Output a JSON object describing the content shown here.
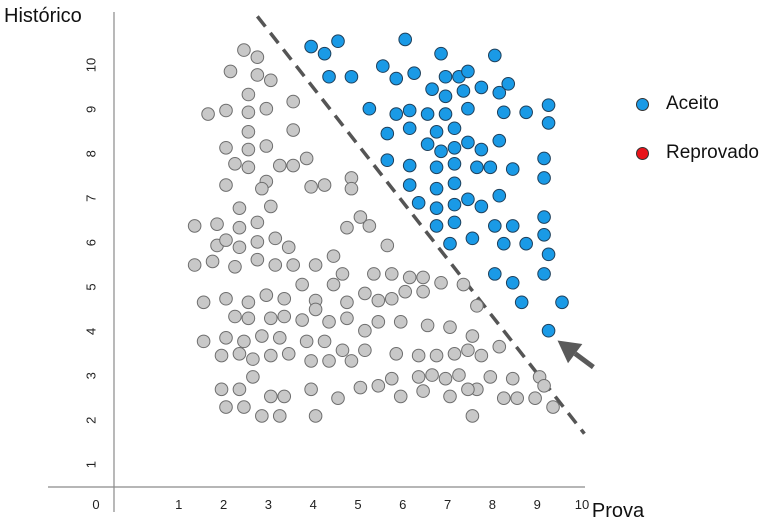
{
  "chart_data": {
    "type": "scatter",
    "xlabel": "Prova",
    "ylabel": "Histórico",
    "xticks": [
      "1",
      "2",
      "3",
      "4",
      "5",
      "6",
      "7",
      "8",
      "9",
      "10"
    ],
    "yticks": [
      "1",
      "2",
      "3",
      "4",
      "5",
      "6",
      "7",
      "8",
      "9",
      "10"
    ],
    "origin_label": "0",
    "xlim": [
      0,
      11.5
    ],
    "ylim": [
      0,
      11.0
    ],
    "grid": false,
    "legend_position": "right",
    "colors": {
      "Aceito": "#1a9ae6",
      "Reprovado": "#e8141a",
      "unlabeled": "#c8c8c8"
    },
    "series": [
      {
        "name": "Aceito",
        "points": [
          [
            4.4,
            9.92
          ],
          [
            4.7,
            9.76
          ],
          [
            5.0,
            10.04
          ],
          [
            4.8,
            9.24
          ],
          [
            5.3,
            9.24
          ],
          [
            6.5,
            10.08
          ],
          [
            6.7,
            9.32
          ],
          [
            6.3,
            9.2
          ],
          [
            6.0,
            9.48
          ],
          [
            7.3,
            9.76
          ],
          [
            7.1,
            8.96
          ],
          [
            7.4,
            8.8
          ],
          [
            7.4,
            9.24
          ],
          [
            7.7,
            9.24
          ],
          [
            7.8,
            8.92
          ],
          [
            7.9,
            9.36
          ],
          [
            8.2,
            9.0
          ],
          [
            8.5,
            9.72
          ],
          [
            8.6,
            8.88
          ],
          [
            8.8,
            9.08
          ],
          [
            5.7,
            8.52
          ],
          [
            6.3,
            8.4
          ],
          [
            6.6,
            8.48
          ],
          [
            7.0,
            8.4
          ],
          [
            7.4,
            8.4
          ],
          [
            7.9,
            8.52
          ],
          [
            8.7,
            8.44
          ],
          [
            9.2,
            8.44
          ],
          [
            9.7,
            8.6
          ],
          [
            9.7,
            8.2
          ],
          [
            6.1,
            7.96
          ],
          [
            6.6,
            8.08
          ],
          [
            7.2,
            8.0
          ],
          [
            7.6,
            8.08
          ],
          [
            7.0,
            7.72
          ],
          [
            7.3,
            7.56
          ],
          [
            7.6,
            7.64
          ],
          [
            7.9,
            7.76
          ],
          [
            8.2,
            7.6
          ],
          [
            8.6,
            7.8
          ],
          [
            6.1,
            7.36
          ],
          [
            6.6,
            7.24
          ],
          [
            7.2,
            7.2
          ],
          [
            7.6,
            7.28
          ],
          [
            8.1,
            7.2
          ],
          [
            8.4,
            7.2
          ],
          [
            8.9,
            7.16
          ],
          [
            9.6,
            7.4
          ],
          [
            9.6,
            6.96
          ],
          [
            6.6,
            6.8
          ],
          [
            7.2,
            6.72
          ],
          [
            7.6,
            6.84
          ],
          [
            6.8,
            6.4
          ],
          [
            7.2,
            6.28
          ],
          [
            7.6,
            6.36
          ],
          [
            7.9,
            6.48
          ],
          [
            8.2,
            6.32
          ],
          [
            8.6,
            6.56
          ],
          [
            7.2,
            5.88
          ],
          [
            7.6,
            5.96
          ],
          [
            8.0,
            5.6
          ],
          [
            8.5,
            5.88
          ],
          [
            8.9,
            5.88
          ],
          [
            9.6,
            6.08
          ],
          [
            9.6,
            5.68
          ],
          [
            7.5,
            5.48
          ],
          [
            8.7,
            5.48
          ],
          [
            9.2,
            5.48
          ],
          [
            9.7,
            5.24
          ],
          [
            8.5,
            4.8
          ],
          [
            8.9,
            4.6
          ],
          [
            9.6,
            4.8
          ],
          [
            9.1,
            4.16
          ],
          [
            10.0,
            4.16
          ],
          [
            9.7,
            3.52
          ]
        ]
      },
      {
        "name": "Reprovado",
        "points": []
      },
      {
        "name": "",
        "points": [
          [
            2.9,
            9.84
          ],
          [
            3.2,
            9.68
          ],
          [
            2.6,
            9.36
          ],
          [
            3.2,
            9.28
          ],
          [
            3.5,
            9.16
          ],
          [
            3.0,
            8.84
          ],
          [
            2.1,
            8.4
          ],
          [
            2.5,
            8.48
          ],
          [
            3.0,
            8.44
          ],
          [
            3.4,
            8.52
          ],
          [
            4.0,
            8.68
          ],
          [
            3.0,
            8.0
          ],
          [
            4.0,
            8.04
          ],
          [
            2.5,
            7.64
          ],
          [
            3.0,
            7.6
          ],
          [
            3.4,
            7.68
          ],
          [
            3.7,
            7.24
          ],
          [
            4.0,
            7.24
          ],
          [
            4.3,
            7.4
          ],
          [
            2.7,
            7.28
          ],
          [
            3.0,
            7.2
          ],
          [
            3.4,
            6.88
          ],
          [
            4.4,
            6.76
          ],
          [
            4.7,
            6.8
          ],
          [
            5.3,
            6.96
          ],
          [
            5.3,
            6.72
          ],
          [
            3.3,
            6.72
          ],
          [
            2.5,
            6.8
          ],
          [
            2.8,
            6.28
          ],
          [
            3.5,
            6.32
          ],
          [
            5.5,
            6.08
          ],
          [
            1.8,
            5.88
          ],
          [
            2.3,
            5.92
          ],
          [
            2.8,
            5.84
          ],
          [
            3.2,
            5.96
          ],
          [
            2.3,
            5.44
          ],
          [
            2.5,
            5.56
          ],
          [
            2.8,
            5.4
          ],
          [
            3.2,
            5.52
          ],
          [
            3.6,
            5.6
          ],
          [
            3.9,
            5.4
          ],
          [
            5.2,
            5.84
          ],
          [
            5.7,
            5.88
          ],
          [
            6.1,
            5.44
          ],
          [
            4.9,
            5.2
          ],
          [
            1.8,
            5.0
          ],
          [
            2.2,
            5.08
          ],
          [
            2.7,
            4.96
          ],
          [
            3.2,
            5.12
          ],
          [
            3.6,
            5.0
          ],
          [
            4.0,
            5.0
          ],
          [
            4.5,
            5.0
          ],
          [
            5.1,
            4.8
          ],
          [
            5.8,
            4.8
          ],
          [
            6.2,
            4.8
          ],
          [
            6.6,
            4.72
          ],
          [
            6.9,
            4.72
          ],
          [
            2.0,
            4.16
          ],
          [
            2.5,
            4.24
          ],
          [
            3.0,
            4.16
          ],
          [
            3.4,
            4.32
          ],
          [
            3.8,
            4.24
          ],
          [
            4.2,
            4.56
          ],
          [
            4.5,
            4.2
          ],
          [
            4.9,
            4.56
          ],
          [
            5.2,
            4.16
          ],
          [
            5.6,
            4.36
          ],
          [
            5.9,
            4.2
          ],
          [
            6.2,
            4.24
          ],
          [
            6.5,
            4.4
          ],
          [
            6.9,
            4.4
          ],
          [
            7.3,
            4.6
          ],
          [
            7.8,
            4.56
          ],
          [
            8.1,
            4.08
          ],
          [
            2.7,
            3.84
          ],
          [
            3.0,
            3.8
          ],
          [
            3.5,
            3.8
          ],
          [
            3.8,
            3.84
          ],
          [
            4.2,
            3.76
          ],
          [
            4.5,
            4.0
          ],
          [
            4.8,
            3.72
          ],
          [
            5.2,
            3.8
          ],
          [
            5.6,
            3.52
          ],
          [
            5.9,
            3.72
          ],
          [
            6.4,
            3.72
          ],
          [
            7.0,
            3.64
          ],
          [
            7.5,
            3.6
          ],
          [
            8.0,
            3.4
          ],
          [
            2.0,
            3.28
          ],
          [
            2.5,
            3.36
          ],
          [
            2.9,
            3.28
          ],
          [
            3.3,
            3.4
          ],
          [
            3.7,
            3.36
          ],
          [
            4.3,
            3.28
          ],
          [
            4.7,
            3.28
          ],
          [
            5.1,
            3.08
          ],
          [
            5.6,
            3.08
          ],
          [
            6.3,
            3.0
          ],
          [
            6.8,
            2.96
          ],
          [
            7.2,
            2.96
          ],
          [
            7.6,
            3.0
          ],
          [
            7.9,
            3.08
          ],
          [
            8.2,
            2.96
          ],
          [
            8.6,
            3.16
          ],
          [
            2.4,
            2.96
          ],
          [
            2.8,
            3.0
          ],
          [
            3.1,
            2.88
          ],
          [
            3.5,
            2.96
          ],
          [
            3.9,
            3.0
          ],
          [
            4.4,
            2.84
          ],
          [
            4.8,
            2.84
          ],
          [
            5.3,
            2.84
          ],
          [
            5.9,
            2.28
          ],
          [
            6.2,
            2.44
          ],
          [
            6.8,
            2.48
          ],
          [
            7.1,
            2.52
          ],
          [
            7.4,
            2.44
          ],
          [
            7.7,
            2.52
          ],
          [
            8.1,
            2.2
          ],
          [
            8.4,
            2.48
          ],
          [
            8.9,
            2.44
          ],
          [
            9.5,
            2.48
          ],
          [
            9.6,
            2.28
          ],
          [
            2.4,
            2.2
          ],
          [
            2.8,
            2.2
          ],
          [
            3.1,
            2.48
          ],
          [
            3.5,
            2.04
          ],
          [
            3.8,
            2.04
          ],
          [
            4.4,
            2.2
          ],
          [
            5.0,
            2.0
          ],
          [
            5.5,
            2.24
          ],
          [
            6.4,
            2.04
          ],
          [
            6.9,
            2.16
          ],
          [
            7.5,
            2.04
          ],
          [
            7.9,
            2.2
          ],
          [
            8.7,
            2.0
          ],
          [
            9.0,
            2.0
          ],
          [
            9.4,
            2.0
          ],
          [
            2.5,
            1.8
          ],
          [
            2.9,
            1.8
          ],
          [
            3.3,
            1.6
          ],
          [
            3.7,
            1.6
          ],
          [
            4.5,
            1.6
          ],
          [
            8.0,
            1.6
          ],
          [
            9.8,
            1.8
          ]
        ]
      }
    ],
    "decision_boundary": {
      "style": "dashed",
      "points": [
        [
          3.2,
          10.6
        ],
        [
          10.5,
          1.2
        ]
      ]
    },
    "annotation": {
      "type": "arrow",
      "from": [
        10.7,
        2.7
      ],
      "to": [
        9.9,
        3.3
      ]
    }
  }
}
